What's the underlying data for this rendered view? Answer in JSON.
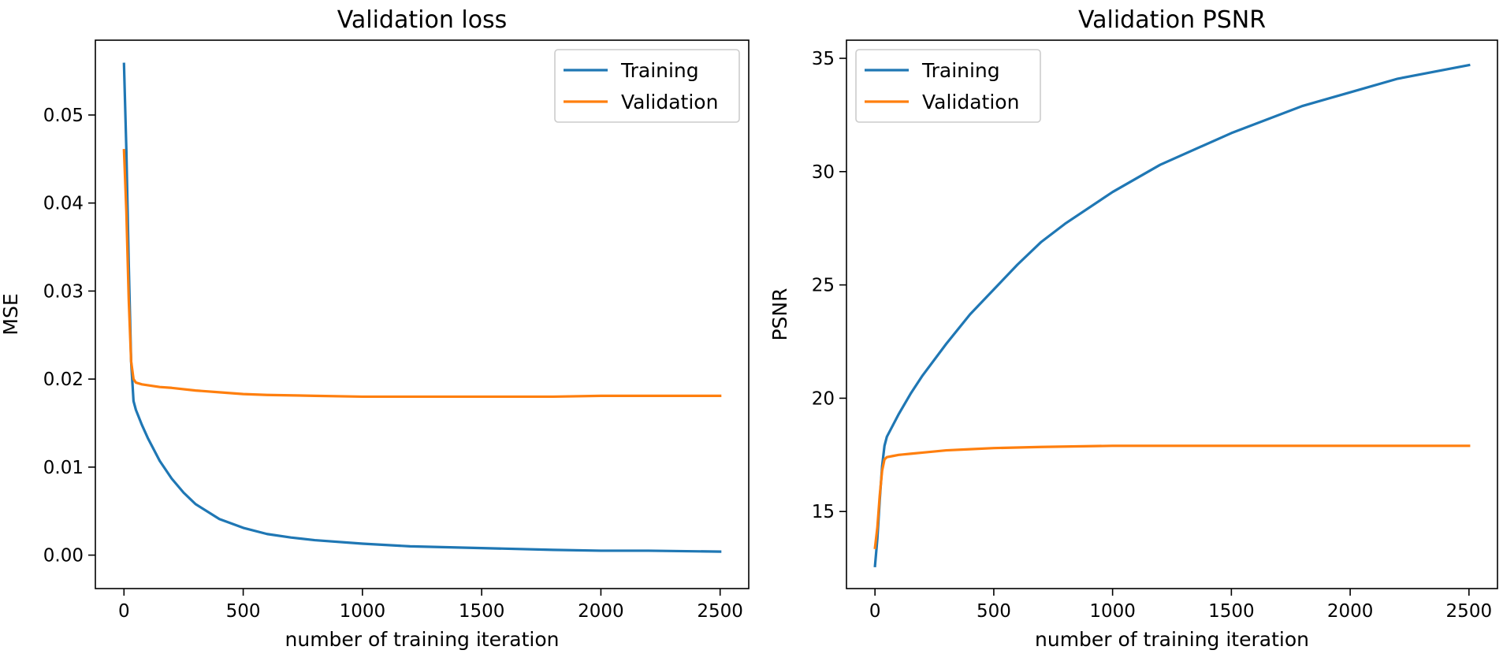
{
  "figure": {
    "background": "#ffffff"
  },
  "colors": {
    "training": "#1f77b4",
    "validation": "#ff7f0e",
    "axis": "#000000"
  },
  "chart_data": [
    {
      "type": "line",
      "title": "Validation loss",
      "xlabel": "number of training iteration",
      "ylabel": "MSE",
      "xlim": [
        -120,
        2620
      ],
      "ylim": [
        -0.0038,
        0.0585
      ],
      "xticks": [
        0,
        500,
        1000,
        1500,
        2000,
        2500
      ],
      "xtick_labels": [
        "0",
        "500",
        "1000",
        "1500",
        "2000",
        "2500"
      ],
      "yticks": [
        0.0,
        0.01,
        0.02,
        0.03,
        0.04,
        0.05
      ],
      "ytick_labels": [
        "0.00",
        "0.01",
        "0.02",
        "0.03",
        "0.04",
        "0.05"
      ],
      "grid": false,
      "legend": "upper right",
      "series": [
        {
          "name": "Training",
          "color": "#1f77b4",
          "x": [
            0,
            10,
            20,
            30,
            40,
            50,
            75,
            100,
            150,
            200,
            250,
            300,
            400,
            500,
            600,
            700,
            800,
            1000,
            1200,
            1500,
            1800,
            2000,
            2200,
            2500
          ],
          "y": [
            0.0558,
            0.046,
            0.033,
            0.022,
            0.0175,
            0.0165,
            0.0148,
            0.0133,
            0.0107,
            0.0087,
            0.0071,
            0.0058,
            0.0041,
            0.0031,
            0.0024,
            0.002,
            0.0017,
            0.0013,
            0.001,
            0.0008,
            0.0006,
            0.0005,
            0.0005,
            0.0004
          ]
        },
        {
          "name": "Validation",
          "color": "#ff7f0e",
          "x": [
            0,
            10,
            20,
            30,
            40,
            50,
            75,
            100,
            150,
            200,
            300,
            400,
            500,
            600,
            800,
            1000,
            1200,
            1500,
            1800,
            2000,
            2200,
            2500
          ],
          "y": [
            0.046,
            0.039,
            0.029,
            0.022,
            0.02,
            0.0196,
            0.0194,
            0.0193,
            0.0191,
            0.019,
            0.0187,
            0.0185,
            0.0183,
            0.0182,
            0.0181,
            0.018,
            0.018,
            0.018,
            0.018,
            0.0181,
            0.0181,
            0.0181
          ]
        }
      ]
    },
    {
      "type": "line",
      "title": "Validation PSNR",
      "xlabel": "number of training iteration",
      "ylabel": "PSNR",
      "xlim": [
        -120,
        2620
      ],
      "ylim": [
        11.6,
        35.8
      ],
      "xticks": [
        0,
        500,
        1000,
        1500,
        2000,
        2500
      ],
      "xtick_labels": [
        "0",
        "500",
        "1000",
        "1500",
        "2000",
        "2500"
      ],
      "yticks": [
        15,
        20,
        25,
        30,
        35
      ],
      "ytick_labels": [
        "15",
        "20",
        "25",
        "30",
        "35"
      ],
      "grid": false,
      "legend": "upper left",
      "series": [
        {
          "name": "Training",
          "color": "#1f77b4",
          "x": [
            0,
            10,
            20,
            30,
            40,
            50,
            75,
            100,
            150,
            200,
            300,
            400,
            500,
            600,
            700,
            800,
            1000,
            1200,
            1500,
            1800,
            2000,
            2200,
            2500
          ],
          "y": [
            12.6,
            13.8,
            15.5,
            17.0,
            17.9,
            18.3,
            18.8,
            19.3,
            20.2,
            21.0,
            22.4,
            23.7,
            24.8,
            25.9,
            26.9,
            27.7,
            29.1,
            30.3,
            31.7,
            32.9,
            33.5,
            34.1,
            34.7
          ]
        },
        {
          "name": "Validation",
          "color": "#ff7f0e",
          "x": [
            0,
            10,
            20,
            30,
            40,
            50,
            75,
            100,
            150,
            200,
            300,
            400,
            500,
            700,
            1000,
            1500,
            2000,
            2500
          ],
          "y": [
            13.4,
            14.3,
            15.7,
            16.8,
            17.3,
            17.4,
            17.45,
            17.5,
            17.55,
            17.6,
            17.7,
            17.75,
            17.8,
            17.85,
            17.9,
            17.9,
            17.9,
            17.9
          ]
        }
      ]
    }
  ]
}
